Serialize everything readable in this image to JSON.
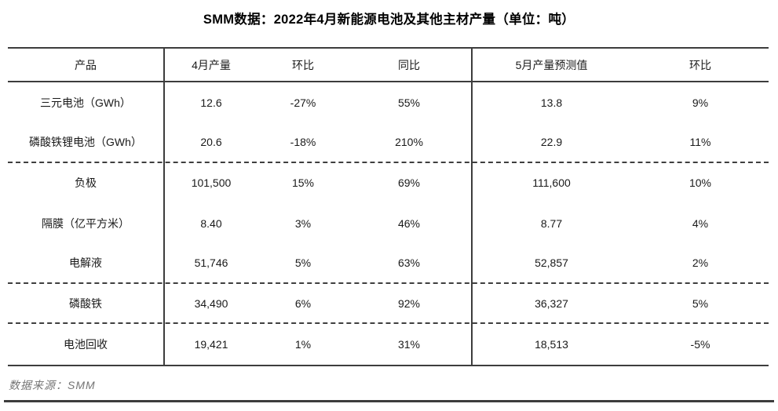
{
  "title": "SMM数据：2022年4月新能源电池及其他主材产量（单位：吨）",
  "chart_data": {
    "type": "table",
    "title": "SMM数据：2022年4月新能源电池及其他主材产量（单位：吨）",
    "columns": [
      "产品",
      "4月产量",
      "环比",
      "同比",
      "5月产量预测值",
      "环比"
    ],
    "rows": [
      {
        "product": "三元电池（GWh）",
        "apr_output": "12.6",
        "mom": "-27%",
        "yoy": "55%",
        "may_forecast": "13.8",
        "forecast_mom": "9%"
      },
      {
        "product": "磷酸铁锂电池（GWh）",
        "apr_output": "20.6",
        "mom": "-18%",
        "yoy": "210%",
        "may_forecast": "22.9",
        "forecast_mom": "11%"
      },
      {
        "product": "负极",
        "apr_output": "101,500",
        "mom": "15%",
        "yoy": "69%",
        "may_forecast": "111,600",
        "forecast_mom": "10%"
      },
      {
        "product": "隔膜（亿平方米）",
        "apr_output": "8.40",
        "mom": "3%",
        "yoy": "46%",
        "may_forecast": "8.77",
        "forecast_mom": "4%"
      },
      {
        "product": "电解液",
        "apr_output": "51,746",
        "mom": "5%",
        "yoy": "63%",
        "may_forecast": "52,857",
        "forecast_mom": "2%"
      },
      {
        "product": "磷酸铁",
        "apr_output": "34,490",
        "mom": "6%",
        "yoy": "92%",
        "may_forecast": "36,327",
        "forecast_mom": "5%"
      },
      {
        "product": "电池回收",
        "apr_output": "19,421",
        "mom": "1%",
        "yoy": "31%",
        "may_forecast": "18,513",
        "forecast_mom": "-5%"
      }
    ],
    "layout": {
      "dashed_separators_after_rows": [
        2,
        5,
        6
      ],
      "vertical_separators_after_columns": [
        1,
        4
      ]
    }
  },
  "footer": {
    "source_note": "数据来源：SMM"
  },
  "colors": {
    "border": "#3d3d3d",
    "text": "#1a1a1a",
    "source_text": "#757575",
    "background": "#ffffff"
  }
}
